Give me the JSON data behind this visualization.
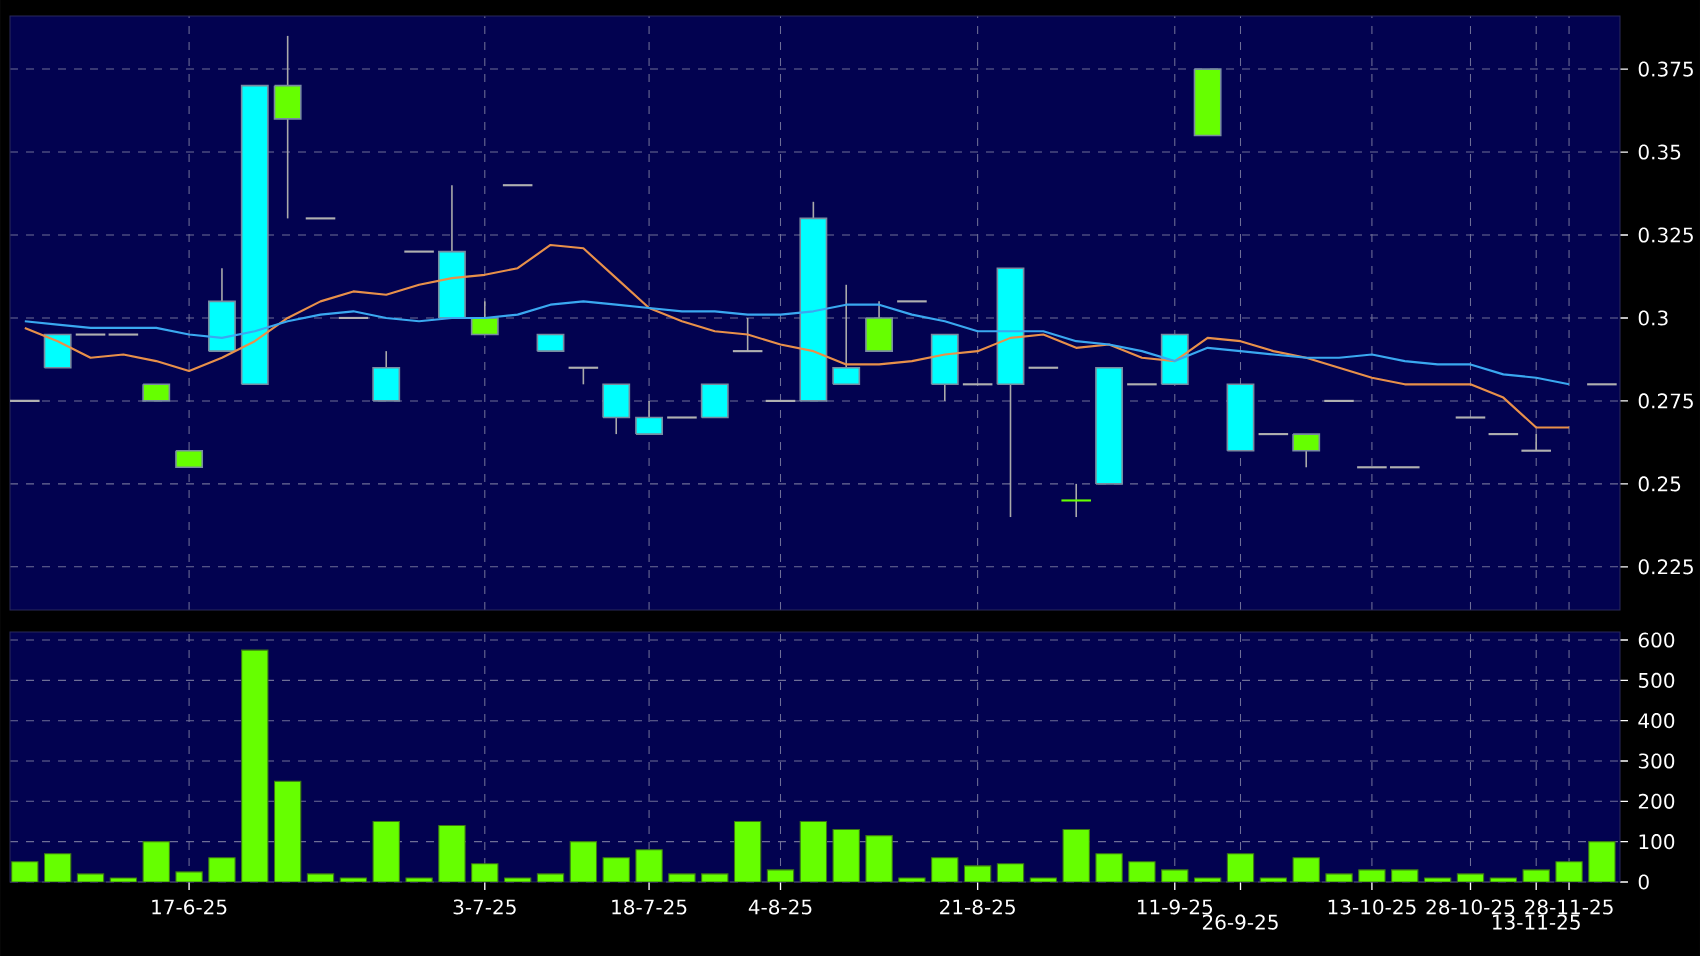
{
  "chart_data": [
    {
      "type": "candlestick",
      "categories": [
        null,
        null,
        null,
        null,
        null,
        null,
        null,
        null,
        null,
        null,
        null,
        null,
        null,
        null,
        null,
        null,
        null,
        null,
        null,
        null,
        null,
        null,
        null,
        null,
        null,
        null,
        null,
        null,
        null,
        null,
        null,
        null,
        null,
        null,
        null,
        null,
        null,
        null,
        null,
        null,
        null,
        null,
        null,
        null,
        null,
        null,
        null,
        null,
        null
      ],
      "ohlc": [
        [
          0.275,
          0.275,
          0.275,
          0.275
        ],
        [
          0.285,
          0.295,
          0.285,
          0.295
        ],
        [
          0.295,
          0.295,
          0.295,
          0.295
        ],
        [
          0.295,
          0.295,
          0.295,
          0.295
        ],
        [
          0.28,
          0.28,
          0.275,
          0.275
        ],
        [
          0.26,
          0.26,
          0.255,
          0.255
        ],
        [
          0.29,
          0.315,
          0.29,
          0.305
        ],
        [
          0.28,
          0.37,
          0.28,
          0.37
        ],
        [
          0.37,
          0.385,
          0.33,
          0.36
        ],
        [
          0.33,
          0.33,
          0.33,
          0.33
        ],
        [
          0.3,
          0.3,
          0.3,
          0.3
        ],
        [
          0.275,
          0.29,
          0.275,
          0.285
        ],
        [
          0.32,
          0.32,
          0.32,
          0.32
        ],
        [
          0.3,
          0.34,
          0.3,
          0.32
        ],
        [
          0.3,
          0.305,
          0.295,
          0.295
        ],
        [
          0.34,
          0.34,
          0.34,
          0.34
        ],
        [
          0.29,
          0.295,
          0.29,
          0.295
        ],
        [
          0.285,
          0.285,
          0.28,
          0.285
        ],
        [
          0.27,
          0.28,
          0.265,
          0.28
        ],
        [
          0.265,
          0.275,
          0.265,
          0.27
        ],
        [
          0.27,
          0.27,
          0.27,
          0.27
        ],
        [
          0.27,
          0.28,
          0.27,
          0.28
        ],
        [
          0.29,
          0.3,
          0.29,
          0.29
        ],
        [
          0.275,
          0.275,
          0.275,
          0.275
        ],
        [
          0.275,
          0.335,
          0.275,
          0.33
        ],
        [
          0.28,
          0.31,
          0.28,
          0.285
        ],
        [
          0.3,
          0.305,
          0.29,
          0.29
        ],
        [
          0.305,
          0.305,
          0.305,
          0.305
        ],
        [
          0.28,
          0.295,
          0.275,
          0.295
        ],
        [
          0.28,
          0.28,
          0.28,
          0.28
        ],
        [
          0.28,
          0.315,
          0.24,
          0.315
        ],
        [
          0.285,
          0.285,
          0.285,
          0.285
        ],
        [
          0.245,
          0.25,
          0.24,
          0.245
        ],
        [
          0.25,
          0.285,
          0.25,
          0.285
        ],
        [
          0.28,
          0.28,
          0.28,
          0.28
        ],
        [
          0.28,
          0.295,
          0.28,
          0.295
        ],
        [
          0.375,
          0.375,
          0.355,
          0.355
        ],
        [
          0.26,
          0.28,
          0.26,
          0.28
        ],
        [
          0.265,
          0.265,
          0.265,
          0.265
        ],
        [
          0.265,
          0.265,
          0.255,
          0.26
        ],
        [
          0.275,
          0.275,
          0.275,
          0.275
        ],
        [
          0.255,
          0.255,
          0.255,
          0.255
        ],
        [
          0.255,
          0.255,
          0.255,
          0.255
        ],
        null,
        [
          0.27,
          0.27,
          0.27,
          0.27
        ],
        [
          0.265,
          0.265,
          0.265,
          0.265
        ],
        [
          0.26,
          0.265,
          0.26,
          0.26
        ],
        null,
        [
          0.28,
          0.28,
          0.28,
          0.28
        ]
      ],
      "colors": [
        "#b0b0b0",
        "#00ffff",
        "#b0b0b0",
        "#b0b0b0",
        "#66ff00",
        "#66ff00",
        "#00ffff",
        "#00ffff",
        "#66ff00",
        "#b0b0b0",
        "#b0b0b0",
        "#00ffff",
        "#b0b0b0",
        "#00ffff",
        "#66ff00",
        "#b0b0b0",
        "#00ffff",
        "#b0b0b0",
        "#00ffff",
        "#00ffff",
        "#b0b0b0",
        "#00ffff",
        "#b0b0b0",
        "#b0b0b0",
        "#00ffff",
        "#00ffff",
        "#66ff00",
        "#b0b0b0",
        "#00ffff",
        "#b0b0b0",
        "#00ffff",
        "#b0b0b0",
        "#66ff00",
        "#00ffff",
        "#b0b0b0",
        "#00ffff",
        "#66ff00",
        "#00ffff",
        "#b0b0b0",
        "#66ff00",
        "#b0b0b0",
        "#b0b0b0",
        "#b0b0b0",
        "#b0b0b0",
        "#b0b0b0",
        "#b0b0b0",
        "#b0b0b0",
        "#b0b0b0",
        "#b0b0b0"
      ],
      "series": [
        {
          "type": "line",
          "color": "#e8904a",
          "values": [
            0.297,
            0.293,
            0.288,
            0.289,
            0.287,
            0.284,
            0.288,
            0.293,
            0.3,
            0.305,
            0.308,
            0.307,
            0.31,
            0.312,
            0.313,
            0.315,
            0.322,
            0.321,
            0.312,
            0.303,
            0.299,
            0.296,
            0.295,
            0.292,
            0.29,
            0.286,
            0.286,
            0.287,
            0.289,
            0.29,
            0.294,
            0.295,
            0.291,
            0.292,
            0.288,
            0.287,
            0.294,
            0.293,
            0.29,
            0.288,
            0.285,
            0.282,
            0.28,
            0.28,
            0.28,
            0.276,
            0.267,
            0.267,
            null
          ]
        },
        {
          "type": "line",
          "color": "#3aa8f0",
          "values": [
            0.299,
            0.298,
            0.297,
            0.297,
            0.297,
            0.295,
            0.294,
            0.296,
            0.299,
            0.301,
            0.302,
            0.3,
            0.299,
            0.3,
            0.3,
            0.301,
            0.304,
            0.305,
            0.304,
            0.303,
            0.302,
            0.302,
            0.301,
            0.301,
            0.302,
            0.304,
            0.304,
            0.301,
            0.299,
            0.296,
            0.296,
            0.296,
            0.293,
            0.292,
            0.29,
            0.287,
            0.291,
            0.29,
            0.289,
            0.288,
            0.288,
            0.289,
            0.287,
            0.286,
            0.286,
            0.283,
            0.282,
            0.28,
            null
          ]
        }
      ],
      "ylim": [
        0.212,
        0.391
      ],
      "yticks": [
        0.225,
        0.25,
        0.275,
        0.3,
        0.325,
        0.35,
        0.375
      ],
      "grid": true,
      "tick_labels": "y"
    },
    {
      "type": "bar",
      "categories": [
        null,
        null,
        null,
        null,
        null,
        "17-6-25",
        null,
        null,
        null,
        null,
        null,
        null,
        null,
        null,
        "3-7-25",
        null,
        null,
        null,
        null,
        "18-7-25",
        null,
        null,
        null,
        "4-8-25",
        null,
        null,
        null,
        null,
        null,
        "21-8-25",
        null,
        null,
        null,
        null,
        null,
        "11-9-25",
        null,
        "26-9-25",
        null,
        null,
        null,
        "13-10-25",
        null,
        null,
        "28-10-25",
        null,
        "13-11-25",
        "28-11-25",
        null
      ],
      "values": [
        50,
        70,
        20,
        10,
        100,
        25,
        60,
        575,
        250,
        20,
        10,
        150,
        10,
        140,
        45,
        10,
        20,
        100,
        60,
        80,
        20,
        20,
        150,
        30,
        150,
        130,
        115,
        10,
        60,
        40,
        45,
        10,
        130,
        70,
        50,
        30,
        10,
        70,
        10,
        60,
        20,
        30,
        30,
        10,
        20,
        10,
        30,
        50,
        100
      ],
      "color": "#66ff00",
      "ylim": [
        0,
        620
      ],
      "yticks": [
        0,
        100,
        200,
        300,
        400,
        500,
        600
      ],
      "grid": true
    }
  ]
}
